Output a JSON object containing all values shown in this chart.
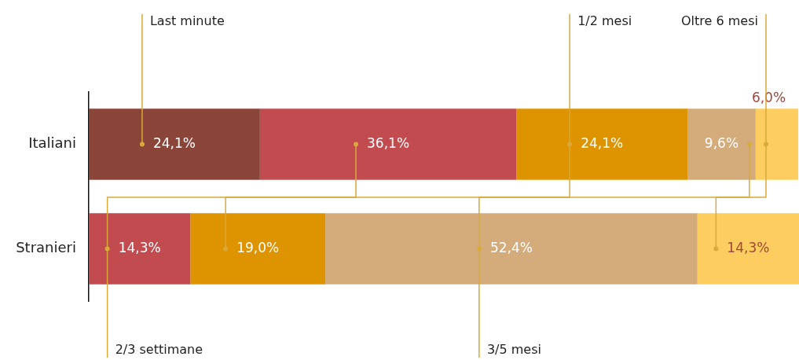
{
  "chart_data": {
    "type": "bar",
    "orientation": "horizontal",
    "stacked": true,
    "categories": [
      "Italiani",
      "Stranieri"
    ],
    "series": [
      {
        "name": "Last minute",
        "color": "#8b4538",
        "values": [
          24.1,
          null
        ],
        "value_labels": [
          "24,1%",
          null
        ]
      },
      {
        "name": "2/3 settimane",
        "color": "#c24b4f",
        "values": [
          36.1,
          14.3
        ],
        "value_labels": [
          "36,1%",
          "14,3%"
        ]
      },
      {
        "name": "1/2 mesi",
        "color": "#de9300",
        "values": [
          24.1,
          19.0
        ],
        "value_labels": [
          "24,1%",
          "19,0%"
        ]
      },
      {
        "name": "3/5 mesi",
        "color": "#d4ab7b",
        "values": [
          9.6,
          52.4
        ],
        "value_labels": [
          "9,6%",
          "52,4%"
        ]
      },
      {
        "name": "Oltre 6 mesi",
        "color": "#fdcd60",
        "values": [
          6.0,
          14.3
        ],
        "value_labels": [
          "6,0%",
          "14,3%"
        ]
      }
    ],
    "xlim": [
      0,
      100
    ],
    "tick_labels": "y",
    "grid": false,
    "legend": false
  }
}
